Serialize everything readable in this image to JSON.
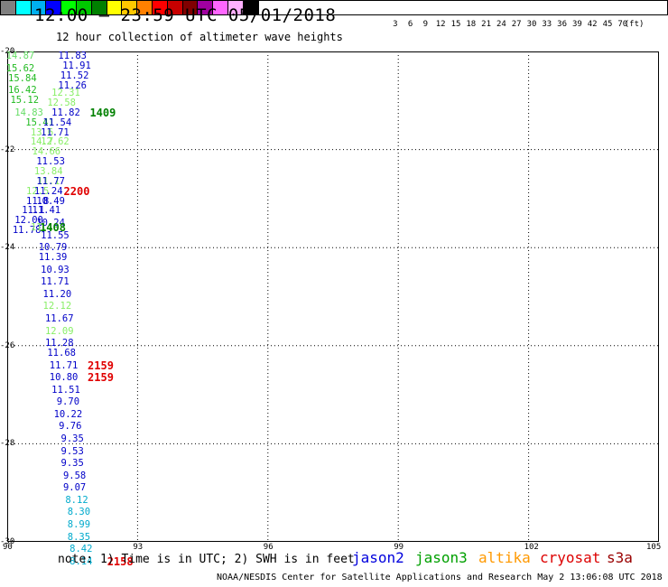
{
  "title": "12:00 – 23:59 UTC 05/01/2018",
  "subtitle": "12 hour collection of altimeter wave heights",
  "legend": {
    "colors": [
      "#808080",
      "#00ffff",
      "#00b0f0",
      "#0000ff",
      "#00ff00",
      "#00c800",
      "#008000",
      "#ffff00",
      "#ffc800",
      "#ff8000",
      "#ff0000",
      "#c80000",
      "#800000",
      "#a000a0",
      "#ff66ff",
      "#ffb0ff",
      "#000000"
    ],
    "ticks": [
      "3",
      "6",
      "9",
      "12",
      "15",
      "18",
      "21",
      "24",
      "27",
      "30",
      "33",
      "36",
      "39",
      "42",
      "45",
      "70",
      "(ft)"
    ]
  },
  "map": {
    "lon_range": [
      90,
      105
    ],
    "lat_range": [
      -30,
      -20
    ],
    "lon_ticks": [
      {
        "value": 90,
        "label": "90"
      },
      {
        "value": 93,
        "label": "93"
      },
      {
        "value": 96,
        "label": "96"
      },
      {
        "value": 99,
        "label": "99"
      },
      {
        "value": 102,
        "label": "102"
      },
      {
        "value": 105,
        "label": "105"
      }
    ],
    "lat_ticks": [
      {
        "value": -20,
        "label": "-20"
      },
      {
        "value": -22,
        "label": "-22"
      },
      {
        "value": -24,
        "label": "-24"
      },
      {
        "value": -26,
        "label": "-26"
      },
      {
        "value": -28,
        "label": "-28"
      },
      {
        "value": -30,
        "label": "-30"
      }
    ],
    "grid": "dotted",
    "observations": [
      {
        "lon": 91.5,
        "lat": -20.1,
        "v": "11.83",
        "c": "#0000c8"
      },
      {
        "lon": 90.3,
        "lat": -20.1,
        "v": "14.87",
        "c": "#66dd66"
      },
      {
        "lon": 91.6,
        "lat": -20.3,
        "v": "11.91",
        "c": "#0000c8"
      },
      {
        "lon": 90.3,
        "lat": -20.35,
        "v": "15.62",
        "c": "#22bb22"
      },
      {
        "lon": 91.55,
        "lat": -20.5,
        "v": "11.52",
        "c": "#0000c8"
      },
      {
        "lon": 90.35,
        "lat": -20.55,
        "v": "15.84",
        "c": "#22bb22"
      },
      {
        "lon": 91.5,
        "lat": -20.7,
        "v": "11.26",
        "c": "#0000c8"
      },
      {
        "lon": 90.35,
        "lat": -20.8,
        "v": "16.42",
        "c": "#22bb22"
      },
      {
        "lon": 91.35,
        "lat": -20.85,
        "v": "12.31",
        "c": "#88ee66"
      },
      {
        "lon": 90.4,
        "lat": -21.0,
        "v": "15.12",
        "c": "#22bb22"
      },
      {
        "lon": 91.25,
        "lat": -21.05,
        "v": "12.58",
        "c": "#88ee66"
      },
      {
        "lon": 90.5,
        "lat": -21.25,
        "v": "14.83",
        "c": "#66dd66"
      },
      {
        "lon": 91.35,
        "lat": -21.25,
        "v": "11.82",
        "c": "#0000c8"
      },
      {
        "lon": 90.75,
        "lat": -21.45,
        "v": "15.41",
        "c": "#22bb22"
      },
      {
        "lon": 91.15,
        "lat": -21.45,
        "v": "11.54",
        "c": "#0000c8"
      },
      {
        "lon": 90.8,
        "lat": -21.65,
        "v": "13.6",
        "c": "#88ee66"
      },
      {
        "lon": 91.1,
        "lat": -21.65,
        "v": "11.71",
        "c": "#0000c8"
      },
      {
        "lon": 90.8,
        "lat": -21.85,
        "v": "14.7",
        "c": "#88ee66"
      },
      {
        "lon": 91.1,
        "lat": -21.85,
        "v": "12.62",
        "c": "#88ee66"
      },
      {
        "lon": 90.9,
        "lat": -22.05,
        "v": "14.66",
        "c": "#88ee66"
      },
      {
        "lon": 91.0,
        "lat": -22.25,
        "v": "11.53",
        "c": "#0000c8"
      },
      {
        "lon": 90.95,
        "lat": -22.45,
        "v": "13.84",
        "c": "#88ee66"
      },
      {
        "lon": 90.95,
        "lat": -22.65,
        "v": "11.1",
        "c": "#88ee66"
      },
      {
        "lon": 91.0,
        "lat": -22.65,
        "v": "11.77",
        "c": "#0000c8"
      },
      {
        "lon": 90.7,
        "lat": -22.85,
        "v": "12.5",
        "c": "#88ee66"
      },
      {
        "lon": 90.95,
        "lat": -22.85,
        "v": "11.24",
        "c": "#0000c8"
      },
      {
        "lon": 90.7,
        "lat": -23.05,
        "v": "11.8",
        "c": "#0000c8"
      },
      {
        "lon": 91.0,
        "lat": -23.05,
        "v": "10.49",
        "c": "#0000c8"
      },
      {
        "lon": 90.6,
        "lat": -23.25,
        "v": "11.1",
        "c": "#0000c8"
      },
      {
        "lon": 90.9,
        "lat": -23.25,
        "v": "11.41",
        "c": "#0000c8"
      },
      {
        "lon": 90.5,
        "lat": -23.45,
        "v": "12.00",
        "c": "#0000c8"
      },
      {
        "lon": 91.0,
        "lat": -23.5,
        "v": "10.24",
        "c": "#0000c8"
      },
      {
        "lon": 90.45,
        "lat": -23.65,
        "v": "11.78",
        "c": "#0000c8"
      },
      {
        "lon": 90.8,
        "lat": -23.6,
        "v": "11.1",
        "c": "#88ee66"
      },
      {
        "lon": 91.1,
        "lat": -23.75,
        "v": "11.55",
        "c": "#0000c8"
      },
      {
        "lon": 91.05,
        "lat": -24.0,
        "v": "10.79",
        "c": "#0000c8"
      },
      {
        "lon": 91.05,
        "lat": -24.2,
        "v": "11.39",
        "c": "#0000c8"
      },
      {
        "lon": 91.1,
        "lat": -24.45,
        "v": "10.93",
        "c": "#0000c8"
      },
      {
        "lon": 91.1,
        "lat": -24.7,
        "v": "11.71",
        "c": "#0000c8"
      },
      {
        "lon": 91.15,
        "lat": -24.95,
        "v": "11.20",
        "c": "#0000c8"
      },
      {
        "lon": 91.15,
        "lat": -25.2,
        "v": "12.12",
        "c": "#88ee66"
      },
      {
        "lon": 91.2,
        "lat": -25.45,
        "v": "11.67",
        "c": "#0000c8"
      },
      {
        "lon": 91.2,
        "lat": -25.7,
        "v": "12.09",
        "c": "#88ee66"
      },
      {
        "lon": 91.2,
        "lat": -25.95,
        "v": "11.28",
        "c": "#0000c8"
      },
      {
        "lon": 91.25,
        "lat": -26.15,
        "v": "11.68",
        "c": "#0000c8"
      },
      {
        "lon": 91.3,
        "lat": -26.4,
        "v": "11.71",
        "c": "#0000c8"
      },
      {
        "lon": 91.3,
        "lat": -26.65,
        "v": "10.80",
        "c": "#0000c8"
      },
      {
        "lon": 91.35,
        "lat": -26.9,
        "v": "11.51",
        "c": "#0000c8"
      },
      {
        "lon": 91.4,
        "lat": -27.15,
        "v": "9.70",
        "c": "#0000c8"
      },
      {
        "lon": 91.4,
        "lat": -27.4,
        "v": "10.22",
        "c": "#0000c8"
      },
      {
        "lon": 91.45,
        "lat": -27.65,
        "v": "9.76",
        "c": "#0000c8"
      },
      {
        "lon": 91.5,
        "lat": -27.9,
        "v": "9.35",
        "c": "#0000c8"
      },
      {
        "lon": 91.5,
        "lat": -28.15,
        "v": "9.53",
        "c": "#0000c8"
      },
      {
        "lon": 91.5,
        "lat": -28.4,
        "v": "9.35",
        "c": "#0000c8"
      },
      {
        "lon": 91.55,
        "lat": -28.65,
        "v": "9.58",
        "c": "#0000c8"
      },
      {
        "lon": 91.55,
        "lat": -28.9,
        "v": "9.07",
        "c": "#0000c8"
      },
      {
        "lon": 91.6,
        "lat": -29.15,
        "v": "8.12",
        "c": "#00aacc"
      },
      {
        "lon": 91.65,
        "lat": -29.4,
        "v": "8.30",
        "c": "#00aacc"
      },
      {
        "lon": 91.65,
        "lat": -29.65,
        "v": "8.99",
        "c": "#00aacc"
      },
      {
        "lon": 91.65,
        "lat": -29.9,
        "v": "8.35",
        "c": "#00aacc"
      },
      {
        "lon": 91.7,
        "lat": -30.15,
        "v": "8.42",
        "c": "#00aacc"
      },
      {
        "lon": 91.7,
        "lat": -30.4,
        "v": "8.14",
        "c": "#00aacc"
      }
    ],
    "pass_times": [
      {
        "lon": 92.2,
        "lat": -21.25,
        "v": "1409",
        "c": "#008000"
      },
      {
        "lon": 91.6,
        "lat": -22.85,
        "v": "2200",
        "c": "#e00000"
      },
      {
        "lon": 91.05,
        "lat": -23.6,
        "v": "1408",
        "c": "#008000"
      },
      {
        "lon": 92.15,
        "lat": -26.4,
        "v": "2159",
        "c": "#e00000"
      },
      {
        "lon": 92.15,
        "lat": -26.65,
        "v": "2159",
        "c": "#e00000"
      },
      {
        "lon": 92.6,
        "lat": -30.4,
        "v": "2158",
        "c": "#e00000"
      }
    ]
  },
  "note": "note: 1) Time is in UTC; 2) SWH is in feet",
  "satellites": [
    {
      "name": "jason2",
      "color": "#0000dd"
    },
    {
      "name": "jason3",
      "color": "#00a000"
    },
    {
      "name": "altika",
      "color": "#ff9900"
    },
    {
      "name": "cryosat",
      "color": "#dd0000"
    },
    {
      "name": "s3a",
      "color": "#990000"
    }
  ],
  "credit": "NOAA/NESDIS Center for Satellite Applications and Research    May  2 13:06:08 UTC 2018"
}
